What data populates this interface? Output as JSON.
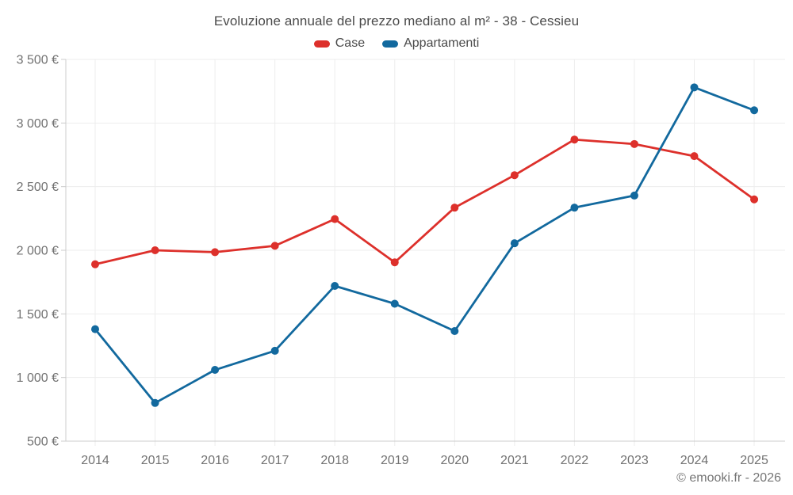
{
  "title": "Evoluzione annuale del prezzo mediano al m² - 38 - Cessieu",
  "footer": "© emooki.fr - 2026",
  "colors": {
    "case_series": "#dd302b",
    "appartamenti_series": "#12699e",
    "gridline": "#ededed",
    "axis": "#cccccc",
    "tick_text": "#717171",
    "title_text": "#4a4a4a"
  },
  "chart_data": {
    "type": "line",
    "title": "Evoluzione annuale del prezzo mediano al m² - 38 - Cessieu",
    "categories": [
      "2014",
      "2015",
      "2016",
      "2017",
      "2018",
      "2019",
      "2020",
      "2021",
      "2022",
      "2023",
      "2024",
      "2025"
    ],
    "series": [
      {
        "name": "Case",
        "color": "#dd302b",
        "values": [
          1890,
          2000,
          1985,
          2035,
          2245,
          1905,
          2335,
          2590,
          2870,
          2835,
          2740,
          2400
        ]
      },
      {
        "name": "Appartamenti",
        "color": "#12699e",
        "values": [
          1380,
          800,
          1060,
          1210,
          1720,
          1580,
          1365,
          2055,
          2335,
          2430,
          3280,
          3100
        ]
      }
    ],
    "xlabel": "",
    "ylabel": "",
    "ylim": [
      500,
      3500
    ],
    "ytick_step": 500,
    "ytick_values": [
      500,
      1000,
      1500,
      2000,
      2500,
      3000,
      3500
    ],
    "ytick_labels": [
      "500 €",
      "1 000 €",
      "1 500 €",
      "2 000 €",
      "2 500 €",
      "3 000 €",
      "3 500 €"
    ],
    "grid": true,
    "legend_position": "top"
  }
}
